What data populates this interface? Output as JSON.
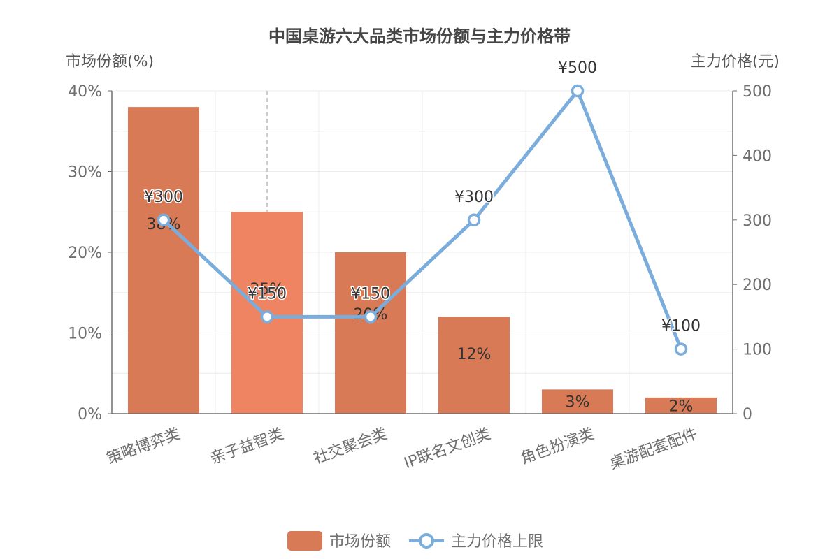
{
  "chart_data": {
    "type": "bar",
    "title": "中国桌游六大品类市场份额与主力价格带",
    "categories": [
      "策略博弈类",
      "亲子益智类",
      "社交聚会类",
      "IP联名文创类",
      "角色扮演类",
      "桌游配套配件"
    ],
    "y_left": {
      "label": "市场份额(%)",
      "range": [
        0,
        40
      ],
      "ticks": [
        "0%",
        "10%",
        "20%",
        "30%",
        "40%"
      ]
    },
    "y_right": {
      "label": "主力价格(元)",
      "range": [
        0,
        500
      ],
      "ticks": [
        "0",
        "100",
        "200",
        "300",
        "400",
        "500"
      ]
    },
    "series": [
      {
        "name": "市场份额",
        "type": "bar",
        "axis": "left",
        "color": "#d97a57",
        "values": [
          38,
          25,
          20,
          12,
          3,
          2
        ],
        "labels": [
          "38%",
          "25%",
          "20%",
          "12%",
          "3%",
          "2%"
        ]
      },
      {
        "name": "主力价格上限",
        "type": "line",
        "axis": "right",
        "color": "#7aaddb",
        "values": [
          300,
          150,
          150,
          300,
          500,
          100
        ],
        "labels": [
          "¥300",
          "¥150",
          "¥150",
          "¥300",
          "¥500",
          "¥100"
        ]
      }
    ],
    "highlighted_category": "亲子益智类",
    "highlight_color": "#ee8461",
    "grid": true,
    "legend_position": "bottom-center"
  }
}
